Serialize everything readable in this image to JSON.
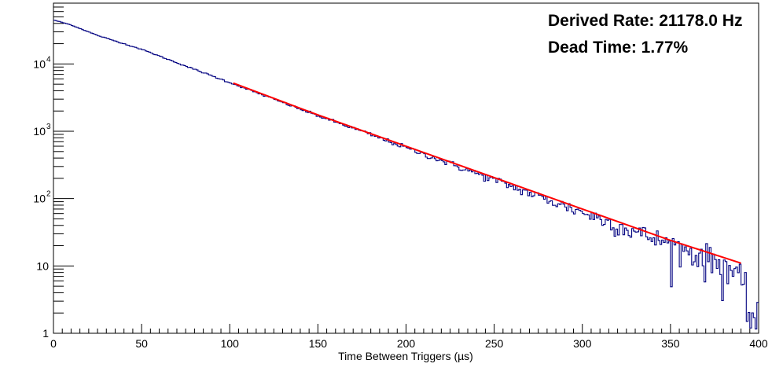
{
  "chart_data": {
    "type": "line",
    "title": "",
    "xlabel": "Time Between Triggers (µs)",
    "ylabel": "",
    "xlim": [
      0,
      400
    ],
    "ylim": [
      1,
      80000
    ],
    "y_scale": "log",
    "grid": false,
    "x_ticks": [
      "0",
      "50",
      "100",
      "150",
      "200",
      "250",
      "300",
      "350",
      "400"
    ],
    "y_ticks": [
      {
        "value": 1,
        "label": "1"
      },
      {
        "value": 10,
        "label": "10"
      },
      {
        "value": 100,
        "label": "10",
        "exp": "2"
      },
      {
        "value": 1000,
        "label": "10",
        "exp": "3"
      },
      {
        "value": 10000,
        "label": "10",
        "exp": "4"
      }
    ],
    "series": [
      {
        "kind": "histogram",
        "color": "#000080",
        "x": [
          0,
          10,
          25,
          50,
          75,
          100,
          125,
          150,
          175,
          200,
          225,
          250,
          275,
          300,
          325,
          350,
          375,
          385,
          390,
          395,
          400
        ],
        "y": [
          45000,
          38000,
          26500,
          16500,
          9300,
          5300,
          3000,
          1700,
          1000,
          570,
          330,
          190,
          108,
          63,
          36,
          21,
          12,
          9,
          5,
          2,
          2
        ],
        "noise_floor_start": 320
      },
      {
        "kind": "fit",
        "color": "#ff0000",
        "x": [
          102,
          150,
          200,
          250,
          300,
          350,
          390
        ],
        "y": [
          5200,
          1750,
          600,
          205,
          70,
          24,
          11
        ]
      }
    ],
    "annotations": [
      {
        "text": "Derived Rate: 21178.0 Hz",
        "color": "#ff0000"
      },
      {
        "text": "Dead Time: 1.77%",
        "color": "#ff0000"
      }
    ]
  }
}
